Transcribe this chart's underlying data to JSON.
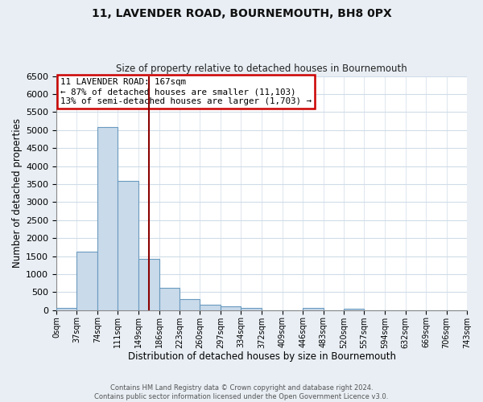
{
  "title": "11, LAVENDER ROAD, BOURNEMOUTH, BH8 0PX",
  "subtitle": "Size of property relative to detached houses in Bournemouth",
  "xlabel": "Distribution of detached houses by size in Bournemouth",
  "ylabel": "Number of detached properties",
  "bar_color": "#c9daea",
  "bar_edge_color": "#6a9abf",
  "plot_bg_color": "#ffffff",
  "fig_bg_color": "#e8eef4",
  "grid_color": "#d0dce8",
  "bin_edges": [
    0,
    37,
    74,
    111,
    149,
    186,
    223,
    260,
    297,
    334,
    372,
    409,
    446,
    483,
    520,
    557,
    594,
    632,
    669,
    706,
    743
  ],
  "bin_labels": [
    "0sqm",
    "37sqm",
    "74sqm",
    "111sqm",
    "149sqm",
    "186sqm",
    "223sqm",
    "260sqm",
    "297sqm",
    "334sqm",
    "372sqm",
    "409sqm",
    "446sqm",
    "483sqm",
    "520sqm",
    "557sqm",
    "594sqm",
    "632sqm",
    "669sqm",
    "706sqm",
    "743sqm"
  ],
  "counts": [
    50,
    1620,
    5080,
    3580,
    1430,
    620,
    310,
    155,
    110,
    55,
    0,
    0,
    50,
    0,
    40,
    0,
    0,
    0,
    0,
    0
  ],
  "property_size": 167,
  "vline_color": "#8b0000",
  "annotation_box_edge_color": "#cc0000",
  "annotation_lines": [
    "11 LAVENDER ROAD: 167sqm",
    "← 87% of detached houses are smaller (11,103)",
    "13% of semi-detached houses are larger (1,703) →"
  ],
  "ylim": [
    0,
    6500
  ],
  "yticks": [
    0,
    500,
    1000,
    1500,
    2000,
    2500,
    3000,
    3500,
    4000,
    4500,
    5000,
    5500,
    6000,
    6500
  ],
  "footer_lines": [
    "Contains HM Land Registry data © Crown copyright and database right 2024.",
    "Contains public sector information licensed under the Open Government Licence v3.0."
  ]
}
